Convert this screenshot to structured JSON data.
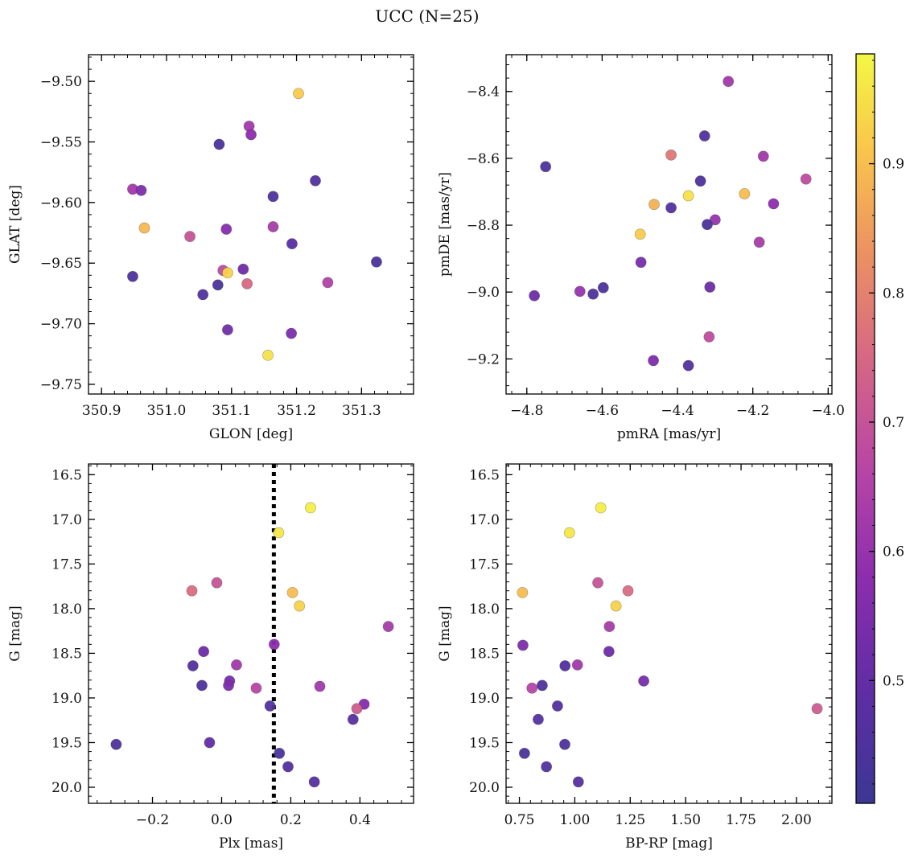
{
  "figure": {
    "title": "UCC (N=25)"
  },
  "colorbar": {
    "range": [
      0.405,
      0.985
    ],
    "ticks": [
      0.5,
      0.6,
      0.7,
      0.8,
      0.9
    ],
    "tick_labels": [
      "0.5",
      "0.6",
      "0.7",
      "0.8",
      "0.9"
    ],
    "colormap": "plasma"
  },
  "chart_data": [
    {
      "type": "scatter",
      "xlabel": "GLON [deg]",
      "ylabel": "GLAT [deg]",
      "xlim": [
        350.88,
        351.38
      ],
      "ylim": [
        -9.758,
        -9.478
      ],
      "xticks": [
        350.9,
        351.0,
        351.1,
        351.2,
        351.3
      ],
      "xtick_labels": [
        "350.9",
        "351.0",
        "351.1",
        "351.2",
        "351.3"
      ],
      "yticks": [
        -9.75,
        -9.7,
        -9.65,
        -9.6,
        -9.55,
        -9.5
      ],
      "ytick_labels": [
        "−9.75",
        "−9.70",
        "−9.65",
        "−9.60",
        "−9.55",
        "−9.50"
      ],
      "points": [
        {
          "x": 351.203,
          "y": -9.51,
          "c": 0.92
        },
        {
          "x": 351.127,
          "y": -9.537,
          "c": 0.62
        },
        {
          "x": 351.13,
          "y": -9.544,
          "c": 0.58
        },
        {
          "x": 351.081,
          "y": -9.552,
          "c": 0.44
        },
        {
          "x": 351.229,
          "y": -9.582,
          "c": 0.46
        },
        {
          "x": 351.164,
          "y": -9.595,
          "c": 0.45
        },
        {
          "x": 350.948,
          "y": -9.589,
          "c": 0.62
        },
        {
          "x": 350.961,
          "y": -9.59,
          "c": 0.55
        },
        {
          "x": 350.966,
          "y": -9.621,
          "c": 0.89
        },
        {
          "x": 351.092,
          "y": -9.622,
          "c": 0.57
        },
        {
          "x": 351.164,
          "y": -9.62,
          "c": 0.63
        },
        {
          "x": 351.036,
          "y": -9.628,
          "c": 0.7
        },
        {
          "x": 351.193,
          "y": -9.634,
          "c": 0.48
        },
        {
          "x": 351.323,
          "y": -9.649,
          "c": 0.44
        },
        {
          "x": 350.948,
          "y": -9.661,
          "c": 0.45
        },
        {
          "x": 351.118,
          "y": -9.655,
          "c": 0.52
        },
        {
          "x": 351.087,
          "y": -9.656,
          "c": 0.68
        },
        {
          "x": 351.094,
          "y": -9.658,
          "c": 0.93
        },
        {
          "x": 351.056,
          "y": -9.676,
          "c": 0.46
        },
        {
          "x": 351.079,
          "y": -9.668,
          "c": 0.44
        },
        {
          "x": 351.124,
          "y": -9.667,
          "c": 0.75
        },
        {
          "x": 351.248,
          "y": -9.666,
          "c": 0.65
        },
        {
          "x": 351.094,
          "y": -9.705,
          "c": 0.53
        },
        {
          "x": 351.192,
          "y": -9.708,
          "c": 0.55
        },
        {
          "x": 351.156,
          "y": -9.726,
          "c": 0.95
        }
      ]
    },
    {
      "type": "scatter",
      "xlabel": "pmRA [mas/yr]",
      "ylabel": "pmDE [mas/yr]",
      "xlim": [
        -4.855,
        -3.99
      ],
      "ylim": [
        -9.305,
        -8.29
      ],
      "xticks": [
        -4.8,
        -4.6,
        -4.4,
        -4.2,
        -4.0
      ],
      "xtick_labels": [
        "−4.8",
        "−4.6",
        "−4.4",
        "−4.2",
        "−4.0"
      ],
      "yticks": [
        -9.2,
        -9.0,
        -8.8,
        -8.6,
        -8.4
      ],
      "ytick_labels": [
        "−9.2",
        "−9.0",
        "−8.8",
        "−8.6",
        "−8.4"
      ],
      "points": [
        {
          "x": -4.265,
          "y": -8.37,
          "c": 0.62
        },
        {
          "x": -4.328,
          "y": -8.533,
          "c": 0.46
        },
        {
          "x": -4.417,
          "y": -8.59,
          "c": 0.78
        },
        {
          "x": -4.172,
          "y": -8.594,
          "c": 0.62
        },
        {
          "x": -4.75,
          "y": -8.625,
          "c": 0.45
        },
        {
          "x": -4.059,
          "y": -8.662,
          "c": 0.68
        },
        {
          "x": -4.339,
          "y": -8.668,
          "c": 0.45
        },
        {
          "x": -4.222,
          "y": -8.706,
          "c": 0.9
        },
        {
          "x": -4.371,
          "y": -8.712,
          "c": 0.95
        },
        {
          "x": -4.462,
          "y": -8.738,
          "c": 0.88
        },
        {
          "x": -4.145,
          "y": -8.736,
          "c": 0.58
        },
        {
          "x": -4.417,
          "y": -8.748,
          "c": 0.46
        },
        {
          "x": -4.3,
          "y": -8.784,
          "c": 0.6
        },
        {
          "x": -4.321,
          "y": -8.798,
          "c": 0.44
        },
        {
          "x": -4.499,
          "y": -8.827,
          "c": 0.92
        },
        {
          "x": -4.183,
          "y": -8.851,
          "c": 0.63
        },
        {
          "x": -4.497,
          "y": -8.911,
          "c": 0.54
        },
        {
          "x": -4.314,
          "y": -8.985,
          "c": 0.52
        },
        {
          "x": -4.597,
          "y": -8.987,
          "c": 0.45
        },
        {
          "x": -4.659,
          "y": -8.998,
          "c": 0.6
        },
        {
          "x": -4.624,
          "y": -9.006,
          "c": 0.45
        },
        {
          "x": -4.78,
          "y": -9.011,
          "c": 0.52
        },
        {
          "x": -4.316,
          "y": -9.134,
          "c": 0.68
        },
        {
          "x": -4.464,
          "y": -9.205,
          "c": 0.55
        },
        {
          "x": -4.371,
          "y": -9.22,
          "c": 0.46
        }
      ]
    },
    {
      "type": "scatter",
      "xlabel": "Plx [mas]",
      "ylabel": "G [mag]",
      "xlim": [
        -0.385,
        0.555
      ],
      "ylim": [
        20.18,
        16.38
      ],
      "xticks": [
        -0.2,
        0.0,
        0.2,
        0.4
      ],
      "xtick_labels": [
        "−0.2",
        "0.0",
        "0.2",
        "0.4"
      ],
      "yticks": [
        16.5,
        17.0,
        17.5,
        18.0,
        18.5,
        19.0,
        19.5,
        20.0
      ],
      "ytick_labels": [
        "16.5",
        "17.0",
        "17.5",
        "18.0",
        "18.5",
        "19.0",
        "19.5",
        "20.0"
      ],
      "vline": {
        "x": 0.151,
        "style": "dotted"
      },
      "points": [
        {
          "x": 0.257,
          "y": 16.87,
          "c": 0.97
        },
        {
          "x": 0.165,
          "y": 17.15,
          "c": 0.96
        },
        {
          "x": -0.086,
          "y": 17.8,
          "c": 0.76
        },
        {
          "x": -0.014,
          "y": 17.71,
          "c": 0.7
        },
        {
          "x": 0.205,
          "y": 17.82,
          "c": 0.9
        },
        {
          "x": 0.225,
          "y": 17.97,
          "c": 0.93
        },
        {
          "x": 0.482,
          "y": 18.2,
          "c": 0.63
        },
        {
          "x": 0.152,
          "y": 18.4,
          "c": 0.58
        },
        {
          "x": -0.052,
          "y": 18.48,
          "c": 0.52
        },
        {
          "x": -0.083,
          "y": 18.64,
          "c": 0.46
        },
        {
          "x": 0.043,
          "y": 18.63,
          "c": 0.62
        },
        {
          "x": -0.057,
          "y": 18.86,
          "c": 0.45
        },
        {
          "x": 0.023,
          "y": 18.81,
          "c": 0.54
        },
        {
          "x": 0.02,
          "y": 18.86,
          "c": 0.55
        },
        {
          "x": 0.1,
          "y": 18.89,
          "c": 0.66
        },
        {
          "x": 0.284,
          "y": 18.87,
          "c": 0.62
        },
        {
          "x": 0.14,
          "y": 19.09,
          "c": 0.46
        },
        {
          "x": 0.412,
          "y": 19.07,
          "c": 0.57
        },
        {
          "x": 0.391,
          "y": 19.12,
          "c": 0.72
        },
        {
          "x": 0.38,
          "y": 19.24,
          "c": 0.47
        },
        {
          "x": -0.305,
          "y": 19.52,
          "c": 0.45
        },
        {
          "x": -0.035,
          "y": 19.5,
          "c": 0.5
        },
        {
          "x": 0.167,
          "y": 19.62,
          "c": 0.44
        },
        {
          "x": 0.192,
          "y": 19.77,
          "c": 0.46
        },
        {
          "x": 0.268,
          "y": 19.94,
          "c": 0.47
        }
      ]
    },
    {
      "type": "scatter",
      "xlabel": "BP-RP [mag]",
      "ylabel": "G [mag]",
      "xlim": [
        0.69,
        2.16
      ],
      "ylim": [
        20.18,
        16.38
      ],
      "xticks": [
        0.75,
        1.0,
        1.25,
        1.5,
        1.75,
        2.0
      ],
      "xtick_labels": [
        "0.75",
        "1.00",
        "1.25",
        "1.50",
        "1.75",
        "2.00"
      ],
      "yticks": [
        16.5,
        17.0,
        17.5,
        18.0,
        18.5,
        19.0,
        19.5,
        20.0
      ],
      "ytick_labels": [
        "16.5",
        "17.0",
        "17.5",
        "18.0",
        "18.5",
        "19.0",
        "19.5",
        "20.0"
      ],
      "points": [
        {
          "x": 1.117,
          "y": 16.87,
          "c": 0.97
        },
        {
          "x": 0.976,
          "y": 17.15,
          "c": 0.96
        },
        {
          "x": 0.764,
          "y": 17.82,
          "c": 0.9
        },
        {
          "x": 1.104,
          "y": 17.71,
          "c": 0.7
        },
        {
          "x": 1.24,
          "y": 17.8,
          "c": 0.76
        },
        {
          "x": 1.186,
          "y": 17.97,
          "c": 0.93
        },
        {
          "x": 1.156,
          "y": 18.2,
          "c": 0.63
        },
        {
          "x": 0.766,
          "y": 18.41,
          "c": 0.55
        },
        {
          "x": 1.154,
          "y": 18.48,
          "c": 0.52
        },
        {
          "x": 0.956,
          "y": 18.64,
          "c": 0.46
        },
        {
          "x": 1.012,
          "y": 18.63,
          "c": 0.62
        },
        {
          "x": 0.807,
          "y": 18.89,
          "c": 0.66
        },
        {
          "x": 0.853,
          "y": 18.86,
          "c": 0.45
        },
        {
          "x": 1.311,
          "y": 18.81,
          "c": 0.54
        },
        {
          "x": 0.922,
          "y": 19.09,
          "c": 0.46
        },
        {
          "x": 0.835,
          "y": 19.24,
          "c": 0.47
        },
        {
          "x": 2.093,
          "y": 19.12,
          "c": 0.72
        },
        {
          "x": 0.773,
          "y": 19.62,
          "c": 0.44
        },
        {
          "x": 0.955,
          "y": 19.52,
          "c": 0.45
        },
        {
          "x": 0.872,
          "y": 19.77,
          "c": 0.46
        },
        {
          "x": 1.016,
          "y": 19.94,
          "c": 0.47
        }
      ]
    }
  ]
}
